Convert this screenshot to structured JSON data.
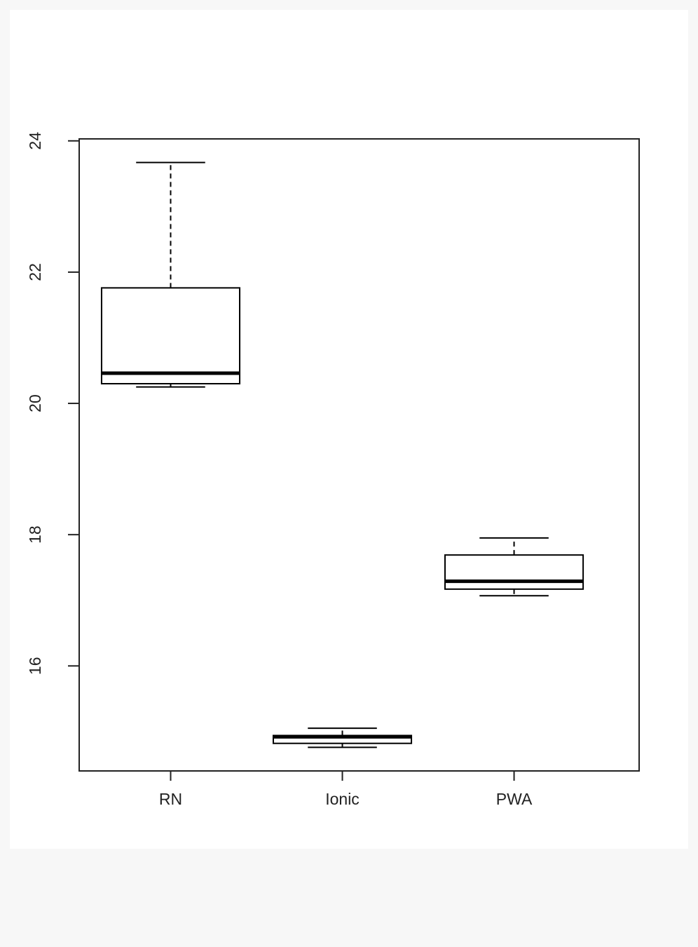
{
  "chart_data": {
    "type": "box",
    "categories": [
      "RN",
      "Ionic",
      "PWA"
    ],
    "boxes": [
      {
        "min": 20.25,
        "q1": 20.3,
        "median": 20.46,
        "q3": 21.76,
        "max": 23.67
      },
      {
        "min": 14.76,
        "q1": 14.82,
        "median": 14.92,
        "q3": 14.94,
        "max": 15.05
      },
      {
        "min": 17.07,
        "q1": 17.17,
        "median": 17.29,
        "q3": 17.69,
        "max": 17.95
      }
    ],
    "color": "#000000",
    "ylim": [
      14.4,
      24.03
    ],
    "yticks": [
      16,
      18,
      20,
      22,
      24
    ],
    "grid": false
  }
}
